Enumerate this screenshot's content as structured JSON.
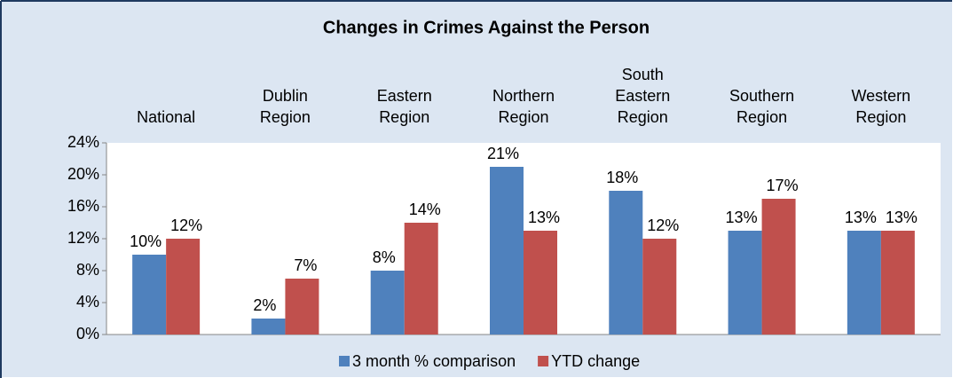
{
  "chart_data": {
    "type": "bar",
    "title": "Changes in Crimes Against the Person",
    "categories": [
      "National",
      "Dublin Region",
      "Eastern Region",
      "Northern Region",
      "South Eastern Region",
      "Southern Region",
      "Western Region"
    ],
    "series": [
      {
        "name": "3 month % comparison",
        "color": "#4f81bd",
        "values": [
          10,
          2,
          8,
          21,
          18,
          13,
          13
        ],
        "value_labels": [
          "10%",
          "2%",
          "8%",
          "21%",
          "18%",
          "13%",
          "13%"
        ]
      },
      {
        "name": "YTD change",
        "color": "#c0504d",
        "values": [
          12,
          7,
          14,
          13,
          12,
          17,
          13
        ],
        "value_labels": [
          "12%",
          "7%",
          "14%",
          "13%",
          "12%",
          "17%",
          "13%"
        ]
      }
    ],
    "ylim": [
      0,
      24
    ],
    "yticks": [
      {
        "value": 0,
        "label": "0%"
      },
      {
        "value": 4,
        "label": "4%"
      },
      {
        "value": 8,
        "label": "8%"
      },
      {
        "value": 12,
        "label": "12%"
      },
      {
        "value": 16,
        "label": "16%"
      },
      {
        "value": 20,
        "label": "20%"
      },
      {
        "value": 24,
        "label": "24%"
      }
    ],
    "legend": "bottom"
  }
}
